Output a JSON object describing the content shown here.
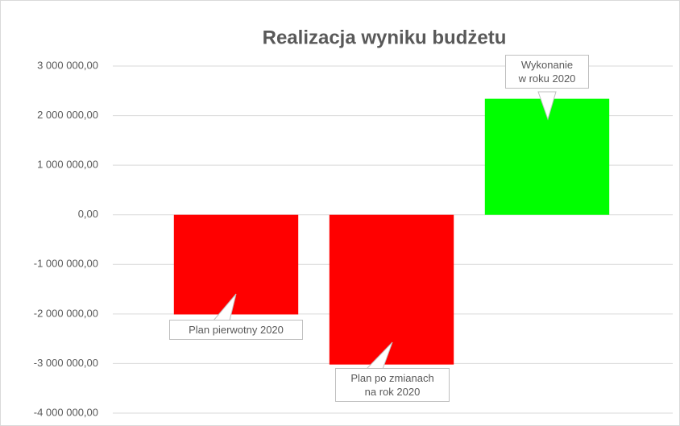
{
  "chart_data": {
    "type": "bar",
    "title": "Realizacja wyniku budżetu",
    "categories": [
      "Plan pierwotny 2020",
      "Plan po zmianach\nna rok 2020",
      "Wykonanie\nw roku 2020"
    ],
    "values": [
      -2010000,
      -3020000,
      2340000
    ],
    "colors": [
      "#ff0000",
      "#ff0000",
      "#00ff00"
    ],
    "ylim": [
      -4000000,
      3000000
    ],
    "yticks": [
      {
        "value": -4000000,
        "label": "-4 000 000,00"
      },
      {
        "value": -3000000,
        "label": "-3 000 000,00"
      },
      {
        "value": -2000000,
        "label": "-2 000 000,00"
      },
      {
        "value": -1000000,
        "label": "-1 000 000,00"
      },
      {
        "value": 0,
        "label": "0,00"
      },
      {
        "value": 1000000,
        "label": "1 000 000,00"
      },
      {
        "value": 2000000,
        "label": "2 000 000,00"
      },
      {
        "value": 3000000,
        "label": "3 000 000,00"
      }
    ],
    "grid": true
  }
}
